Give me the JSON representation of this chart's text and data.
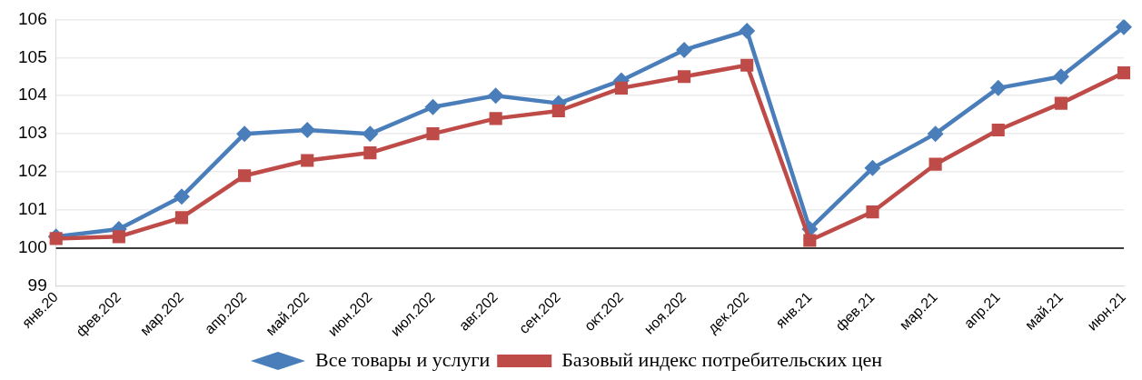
{
  "chart_data": {
    "type": "line",
    "categories": [
      "янв.20",
      "фев.202",
      "мар.202",
      "апр.202",
      "май.202",
      "июн.202",
      "июл.202",
      "авг.202",
      "сен.202",
      "окт.202",
      "ноя.202",
      "дек.202",
      "янв.21",
      "фев.21",
      "мар.21",
      "апр.21",
      "май.21",
      "июн.21"
    ],
    "series": [
      {
        "name": "Все товары и услуги",
        "color": "#4a7ebb",
        "marker": "diamond",
        "values": [
          100.3,
          100.5,
          101.35,
          103,
          103.1,
          103,
          103.7,
          104,
          103.8,
          104.4,
          105.2,
          105.7,
          100.5,
          102.1,
          103,
          104.2,
          104.5,
          105.8
        ]
      },
      {
        "name": "Базовый индекс потребительских цен",
        "color": "#be4b48",
        "marker": "square",
        "values": [
          100.25,
          100.3,
          100.8,
          101.9,
          102.3,
          102.5,
          103,
          103.4,
          103.6,
          104.2,
          104.5,
          104.8,
          100.2,
          100.95,
          102.2,
          103.1,
          103.8,
          104.6
        ]
      }
    ],
    "ylim": [
      99,
      106
    ],
    "yticks": [
      99,
      100,
      101,
      102,
      103,
      104,
      105,
      106
    ],
    "grid": "y",
    "legend": "bottom",
    "ref_lines": [
      {
        "axis": "y",
        "value": 100,
        "color": "#000000"
      }
    ]
  }
}
